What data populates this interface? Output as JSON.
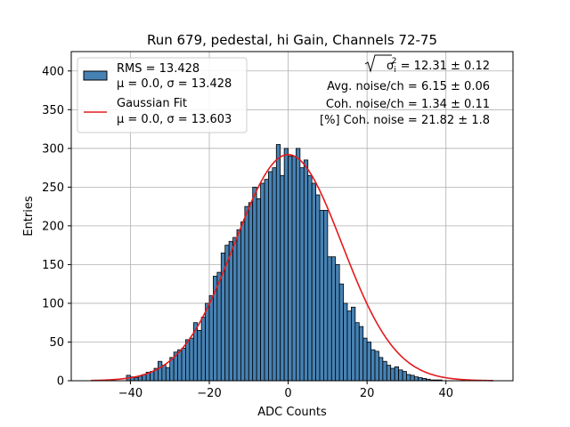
{
  "chart_data": {
    "type": "bar",
    "title": "Run 679, pedestal, hi Gain, Channels 72-75",
    "xlabel": "ADC Counts",
    "ylabel": "Entries",
    "xlim": [
      -55,
      57
    ],
    "ylim": [
      0,
      425
    ],
    "xticks": [
      -40,
      -20,
      0,
      20,
      40
    ],
    "yticks": [
      0,
      50,
      100,
      150,
      200,
      250,
      300,
      350,
      400
    ],
    "grid": true,
    "legend_position": "top-left",
    "bin_width": 1,
    "series": [
      {
        "name": "RMS = 13.428",
        "name_line2": "μ = 0.0, σ = 13.428",
        "kind": "histogram",
        "color": "#4682b4",
        "edge_color": "#000000",
        "bins_start": -50,
        "values": [
          0,
          0,
          0,
          0,
          0,
          0,
          0,
          0,
          0,
          7,
          5,
          4,
          6,
          8,
          11,
          12,
          16,
          25,
          20,
          17,
          30,
          37,
          40,
          42,
          53,
          55,
          75,
          65,
          82,
          100,
          110,
          135,
          140,
          165,
          175,
          180,
          185,
          195,
          205,
          225,
          230,
          250,
          235,
          255,
          260,
          270,
          275,
          305,
          265,
          300,
          290,
          290,
          300,
          275,
          285,
          265,
          255,
          240,
          220,
          220,
          160,
          160,
          150,
          125,
          100,
          90,
          95,
          75,
          70,
          55,
          50,
          40,
          38,
          30,
          25,
          20,
          16,
          18,
          14,
          12,
          8,
          7,
          5,
          4,
          3,
          2,
          1,
          1,
          1,
          0,
          0,
          0,
          0,
          0,
          0,
          0,
          0,
          0,
          0,
          0,
          0,
          0
        ]
      },
      {
        "name": "Gaussian Fit",
        "name_line2": "μ = 0.0, σ = 13.603",
        "kind": "curve",
        "color": "#e41a1c",
        "mu": 0.0,
        "sigma": 13.603,
        "amplitude": 292,
        "x_range": [
          -50,
          52
        ]
      }
    ],
    "annotations": [
      {
        "prefix": "√",
        "symbol": "σ",
        "sub": "i",
        "sup": "2",
        "text": " = 12.31 ± 0.12"
      },
      {
        "text": "Avg. noise/ch = 6.15 ± 0.06"
      },
      {
        "text": "Coh. noise/ch = 1.34 ± 0.11"
      },
      {
        "text": "[%] Coh. noise = 21.82 ± 1.8"
      }
    ]
  }
}
